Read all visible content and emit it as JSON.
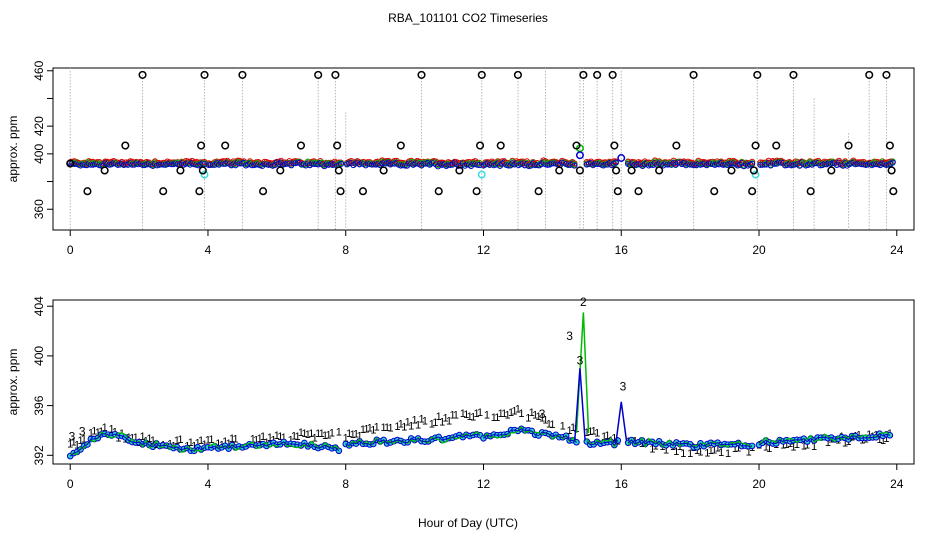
{
  "chart_data": [
    {
      "type": "scatter",
      "title": "RBA_101101  CO2 Timeseries",
      "xlabel": "",
      "ylabel": "approx. ppm",
      "xlim": [
        -0.5,
        24.5
      ],
      "ylim": [
        345,
        462
      ],
      "xticks": [
        0,
        4,
        8,
        12,
        16,
        20,
        24
      ],
      "yticks": [
        360,
        380,
        400,
        420,
        440,
        460
      ],
      "ytick_labels": [
        "360",
        "400",
        "420",
        "460"
      ],
      "ytick_labels_at": [
        360,
        400,
        420,
        460
      ],
      "colors": {
        "series1": "#dd0000",
        "series2": "#00bb00",
        "series3": "#0000cc",
        "outlier": "#000000",
        "highlight": "#33dddd",
        "drop": "#aaaaaa"
      },
      "baseline_start": 393,
      "baseline_end": 393,
      "highlights": [
        [
          3.9,
          385
        ],
        [
          11.95,
          385
        ],
        [
          19.9,
          385
        ],
        [
          14.8,
          404
        ],
        [
          14.8,
          399
        ],
        [
          16.0,
          397
        ]
      ],
      "outliers": [
        [
          0.0,
          393
        ],
        [
          0.5,
          373
        ],
        [
          1.0,
          388
        ],
        [
          1.6,
          406
        ],
        [
          2.1,
          457
        ],
        [
          2.7,
          373
        ],
        [
          3.2,
          388
        ],
        [
          3.8,
          406
        ],
        [
          3.85,
          388
        ],
        [
          3.75,
          373
        ],
        [
          3.9,
          457
        ],
        [
          4.5,
          406
        ],
        [
          5.0,
          457
        ],
        [
          5.6,
          373
        ],
        [
          6.1,
          388
        ],
        [
          6.7,
          406
        ],
        [
          7.2,
          457
        ],
        [
          7.7,
          457
        ],
        [
          7.75,
          406
        ],
        [
          7.8,
          388
        ],
        [
          7.85,
          373
        ],
        [
          8.5,
          373
        ],
        [
          9.1,
          388
        ],
        [
          9.6,
          406
        ],
        [
          10.2,
          457
        ],
        [
          10.7,
          373
        ],
        [
          11.3,
          388
        ],
        [
          11.8,
          373
        ],
        [
          11.9,
          406
        ],
        [
          11.95,
          457
        ],
        [
          12.5,
          406
        ],
        [
          13.0,
          457
        ],
        [
          13.6,
          373
        ],
        [
          14.2,
          388
        ],
        [
          14.7,
          406
        ],
        [
          14.8,
          388
        ],
        [
          14.9,
          457
        ],
        [
          15.3,
          457
        ],
        [
          15.75,
          457
        ],
        [
          15.8,
          406
        ],
        [
          15.85,
          388
        ],
        [
          15.9,
          373
        ],
        [
          16.3,
          388
        ],
        [
          16.5,
          373
        ],
        [
          17.1,
          388
        ],
        [
          17.6,
          406
        ],
        [
          18.1,
          457
        ],
        [
          18.7,
          373
        ],
        [
          19.2,
          388
        ],
        [
          19.8,
          373
        ],
        [
          19.85,
          388
        ],
        [
          19.9,
          406
        ],
        [
          19.95,
          457
        ],
        [
          20.5,
          406
        ],
        [
          21.0,
          457
        ],
        [
          21.5,
          373
        ],
        [
          22.1,
          388
        ],
        [
          22.6,
          406
        ],
        [
          23.2,
          457
        ],
        [
          23.7,
          457
        ],
        [
          23.8,
          406
        ],
        [
          23.85,
          388
        ],
        [
          23.9,
          373
        ]
      ],
      "drop_tops": [
        [
          0.0,
          462
        ],
        [
          2.1,
          457
        ],
        [
          3.9,
          462
        ],
        [
          5.0,
          457
        ],
        [
          7.2,
          457
        ],
        [
          7.7,
          457
        ],
        [
          8.0,
          430
        ],
        [
          10.2,
          457
        ],
        [
          11.95,
          462
        ],
        [
          13.0,
          457
        ],
        [
          13.8,
          462
        ],
        [
          14.8,
          462
        ],
        [
          14.9,
          462
        ],
        [
          15.3,
          457
        ],
        [
          15.75,
          457
        ],
        [
          16.0,
          462
        ],
        [
          18.1,
          457
        ],
        [
          19.95,
          462
        ],
        [
          21.0,
          457
        ],
        [
          21.6,
          440
        ],
        [
          22.6,
          415
        ],
        [
          23.2,
          457
        ],
        [
          23.7,
          457
        ]
      ]
    },
    {
      "type": "line",
      "title": "",
      "xlabel": "Hour of Day (UTC)",
      "ylabel": "approx. ppm",
      "xlim": [
        -0.5,
        24.5
      ],
      "ylim": [
        391.3,
        404.5
      ],
      "xticks": [
        0,
        4,
        8,
        12,
        16,
        20,
        24
      ],
      "yticks": [
        392,
        396,
        400,
        404
      ],
      "series": [
        {
          "name": "1",
          "color": "#dd0000"
        },
        {
          "name": "2",
          "color": "#00bb00"
        },
        {
          "name": "3",
          "color": "#0000cc"
        }
      ],
      "labels": [
        {
          "text": "3",
          "x": 0.05,
          "y": 393.2,
          "color": "#0000cc"
        },
        {
          "text": "3",
          "x": 0.35,
          "y": 393.6,
          "color": "#0000cc"
        },
        {
          "text": "3",
          "x": 14.5,
          "y": 401.3,
          "color": "#00bb00"
        },
        {
          "text": "2",
          "x": 14.9,
          "y": 404.0,
          "color": "#00bb00"
        },
        {
          "text": "3",
          "x": 14.8,
          "y": 399.3,
          "color": "#0000cc"
        },
        {
          "text": "3",
          "x": 16.05,
          "y": 397.2,
          "color": "#0000cc"
        },
        {
          "text": "3",
          "x": 13.7,
          "y": 395.0,
          "color": "#cc0099"
        }
      ],
      "red_profile": [
        [
          0.0,
          392.8
        ],
        [
          0.5,
          393.6
        ],
        [
          1.0,
          394.0
        ],
        [
          2.0,
          393.3
        ],
        [
          3.0,
          393.0
        ],
        [
          3.9,
          393.1
        ],
        [
          4.0,
          393.0
        ],
        [
          5.0,
          393.2
        ],
        [
          6.0,
          393.4
        ],
        [
          7.0,
          393.7
        ],
        [
          7.8,
          393.9
        ],
        [
          8.0,
          393.6
        ],
        [
          9.0,
          394.2
        ],
        [
          10.0,
          394.6
        ],
        [
          11.0,
          395.0
        ],
        [
          11.9,
          395.4
        ],
        [
          12.0,
          395.1
        ],
        [
          13.0,
          395.6
        ],
        [
          14.0,
          394.6
        ],
        [
          14.7,
          394.1
        ],
        [
          15.0,
          393.8
        ],
        [
          15.9,
          393.4
        ],
        [
          16.2,
          393.0
        ],
        [
          17.0,
          392.6
        ],
        [
          18.0,
          392.4
        ],
        [
          19.0,
          392.4
        ],
        [
          19.8,
          392.5
        ],
        [
          20.0,
          392.6
        ],
        [
          21.0,
          392.8
        ],
        [
          22.0,
          393.2
        ],
        [
          23.0,
          393.4
        ],
        [
          23.8,
          393.5
        ]
      ],
      "blue_profile": [
        [
          0.0,
          392.0
        ],
        [
          0.5,
          393.0
        ],
        [
          1.0,
          393.9
        ],
        [
          2.0,
          393.0
        ],
        [
          3.0,
          392.6
        ],
        [
          3.9,
          392.5
        ],
        [
          4.0,
          392.6
        ],
        [
          5.0,
          392.7
        ],
        [
          6.0,
          393.0
        ],
        [
          7.0,
          392.8
        ],
        [
          7.8,
          392.5
        ],
        [
          8.0,
          392.9
        ],
        [
          9.0,
          393.1
        ],
        [
          10.0,
          393.2
        ],
        [
          11.0,
          393.4
        ],
        [
          11.9,
          393.6
        ],
        [
          12.0,
          393.5
        ],
        [
          13.0,
          394.0
        ],
        [
          14.0,
          393.6
        ],
        [
          14.6,
          393.3
        ],
        [
          15.0,
          393.0
        ],
        [
          15.8,
          393.0
        ],
        [
          16.2,
          393.1
        ],
        [
          17.0,
          393.0
        ],
        [
          18.0,
          392.8
        ],
        [
          19.0,
          392.9
        ],
        [
          19.8,
          392.9
        ],
        [
          20.0,
          393.0
        ],
        [
          21.0,
          393.2
        ],
        [
          22.0,
          393.3
        ],
        [
          23.0,
          393.5
        ],
        [
          23.8,
          393.7
        ]
      ],
      "peaks": {
        "green": [
          14.9,
          403.5
        ],
        "blue1": [
          14.8,
          399.0
        ],
        "blue2": [
          16.0,
          396.3
        ]
      }
    }
  ]
}
